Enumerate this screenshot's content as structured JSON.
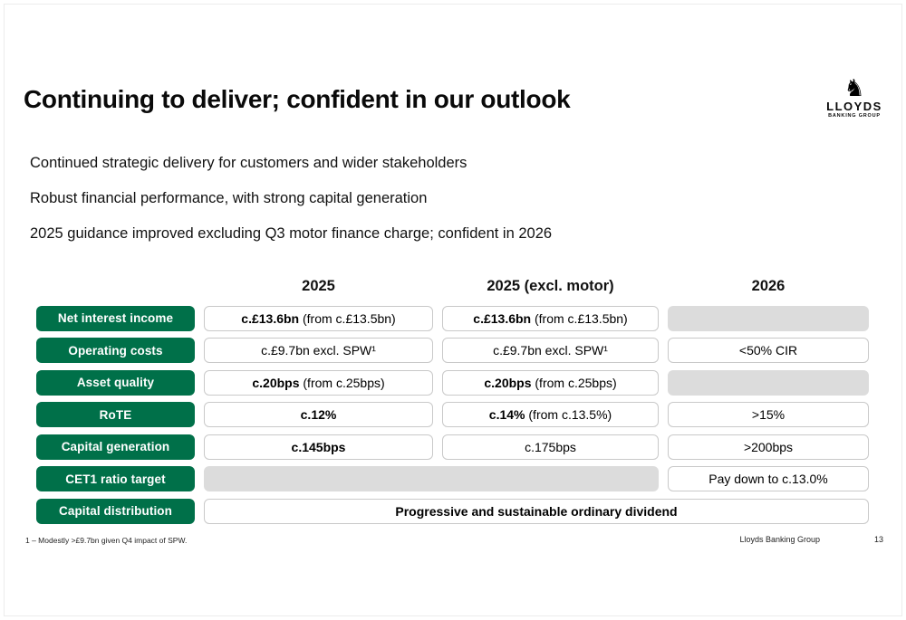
{
  "slide": {
    "title": "Continuing to deliver; confident in our outlook",
    "bullets": [
      "Continued strategic delivery for customers and wider stakeholders",
      "Robust financial performance, with strong capital generation",
      "2025 guidance improved excluding Q3 motor finance charge; confident in 2026"
    ],
    "footnote": "1 – Modestly >£9.7bn given Q4 impact of SPW.",
    "footer_company": "Lloyds Banking Group",
    "footer_page": "13"
  },
  "logo": {
    "icon": "horse-icon",
    "icon_glyph": "♞",
    "name": "LLOYDS",
    "subtitle": "BANKING GROUP"
  },
  "colors": {
    "green": "#007049",
    "gray": "#dcdcdc"
  },
  "table": {
    "columns": [
      "2025",
      "2025 (excl. motor)",
      "2026"
    ],
    "rows": [
      {
        "label": "Net interest income",
        "cells": [
          {
            "b": "c.£13.6bn",
            "t": " (from c.£13.5bn)"
          },
          {
            "b": "c.£13.6bn",
            "t": " (from c.£13.5bn)"
          },
          {
            "empty": true
          }
        ]
      },
      {
        "label": "Operating costs",
        "cells": [
          {
            "t": "c.£9.7bn excl. SPW¹"
          },
          {
            "t": "c.£9.7bn excl. SPW¹"
          },
          {
            "t": "<50% CIR"
          }
        ]
      },
      {
        "label": "Asset quality",
        "cells": [
          {
            "b": "c.20bps",
            "t": " (from c.25bps)"
          },
          {
            "b": "c.20bps",
            "t": " (from c.25bps)"
          },
          {
            "empty": true
          }
        ]
      },
      {
        "label": "RoTE",
        "cells": [
          {
            "b": "c.12%"
          },
          {
            "b": "c.14%",
            "t": " (from c.13.5%)"
          },
          {
            "t": ">15%"
          }
        ]
      },
      {
        "label": "Capital generation",
        "cells": [
          {
            "b": "c.145bps"
          },
          {
            "t": "c.175bps"
          },
          {
            "t": ">200bps"
          }
        ]
      },
      {
        "label": "CET1 ratio target",
        "cells": [
          {
            "empty": true,
            "span": 2
          },
          {
            "t": "Pay down to c.13.0%"
          }
        ]
      },
      {
        "label": "Capital distribution",
        "cells": [
          {
            "b": "Progressive and sustainable ordinary dividend",
            "span": 3
          }
        ]
      }
    ]
  }
}
